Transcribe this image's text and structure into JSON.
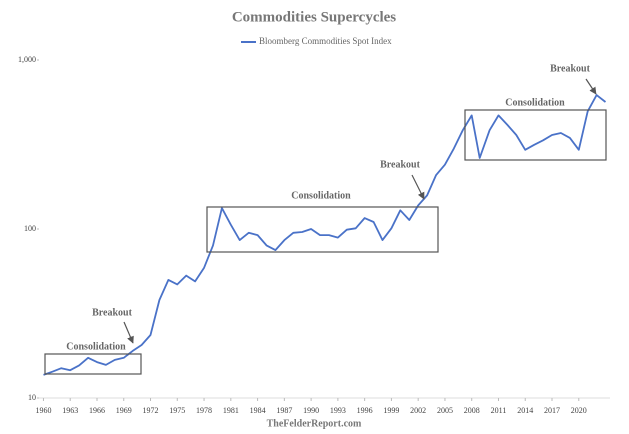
{
  "chart_data": {
    "type": "line",
    "title": "Commodities Supercycles",
    "log_scale": true,
    "x": [
      1960,
      1961,
      1962,
      1963,
      1964,
      1965,
      1966,
      1967,
      1968,
      1969,
      1970,
      1971,
      1972,
      1973,
      1974,
      1975,
      1976,
      1977,
      1978,
      1979,
      1980,
      1981,
      1982,
      1983,
      1984,
      1985,
      1986,
      1987,
      1988,
      1989,
      1990,
      1991,
      1992,
      1993,
      1994,
      1995,
      1996,
      1997,
      1998,
      1999,
      2000,
      2001,
      2002,
      2003,
      2004,
      2005,
      2006,
      2007,
      2008,
      2008.9,
      2010,
      2011,
      2012,
      2013,
      2014,
      2015,
      2016,
      2017,
      2018,
      2019,
      2020,
      2021,
      2022,
      2023
    ],
    "series": [
      {
        "name": "Bloomberg Commodities Spot Index",
        "color": "#4a72c8",
        "values": [
          13.7,
          14.3,
          15,
          14.6,
          15.6,
          17.3,
          16.3,
          15.7,
          16.8,
          17.3,
          19,
          20.6,
          23.6,
          38,
          50,
          47,
          53,
          49,
          59,
          80,
          133,
          106,
          86,
          95,
          92,
          80,
          75,
          86,
          95,
          96,
          100,
          92,
          92,
          89,
          99,
          101,
          116,
          110,
          86,
          101,
          129,
          113,
          138,
          158,
          208,
          240,
          300,
          384,
          470,
          263,
          384,
          470,
          413,
          360,
          294,
          315,
          335,
          360,
          370,
          346,
          294,
          497,
          620,
          564
        ]
      }
    ],
    "xlim": [
      1959.5,
      2023.5
    ],
    "xticks": [
      1960,
      1963,
      1966,
      1969,
      1972,
      1975,
      1978,
      1981,
      1984,
      1987,
      1990,
      1993,
      1996,
      1999,
      2002,
      2005,
      2008,
      2011,
      2014,
      2017,
      2020
    ],
    "ylim": [
      10,
      1000
    ],
    "yticks": [
      10,
      100,
      {
        "value": 1000,
        "label": "1,000"
      }
    ],
    "annotations": [
      {
        "text": "Consolidation"
      },
      {
        "text": "Breakout"
      },
      {
        "text": "Consolidation"
      },
      {
        "text": "Breakout"
      },
      {
        "text": "Consolidation"
      },
      {
        "text": "Breakout"
      }
    ],
    "source": "TheFelderReport.com"
  }
}
